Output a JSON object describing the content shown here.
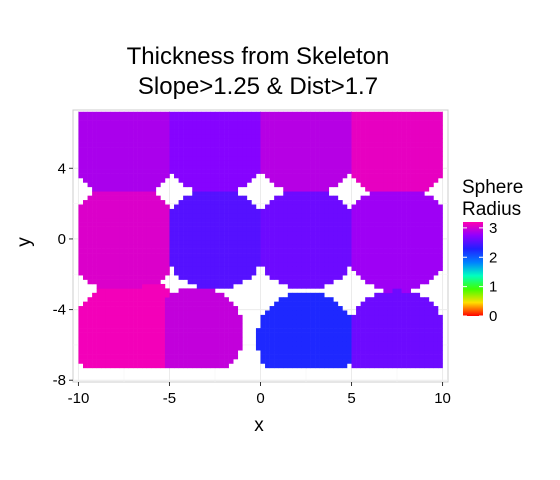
{
  "chart_data": {
    "type": "heatmap",
    "title": [
      "Thickness from Skeleton",
      "Slope>1.25 & Dist>1.7"
    ],
    "xlabel": "x",
    "ylabel": "y",
    "xlim": [
      -10.3,
      10.3
    ],
    "ylim": [
      -8.1,
      7.3
    ],
    "x_ticks": [
      -10,
      -5,
      0,
      5,
      10
    ],
    "x_tick_labels": [
      "-10",
      "-5",
      "0",
      "5",
      "10"
    ],
    "y_ticks": [
      -8,
      -4,
      0,
      4
    ],
    "y_tick_labels": [
      "-8",
      "-4",
      "0",
      "4"
    ],
    "grid": true,
    "legend": {
      "title": [
        "Sphere",
        "Radius"
      ],
      "min": 0,
      "max": 3.2,
      "breaks": [
        0,
        1,
        2,
        3
      ],
      "break_labels": [
        "0",
        "1",
        "2",
        "3"
      ],
      "colors": [
        "#ff0000",
        "#ffdf00",
        "#40ff00",
        "#00ffc0",
        "#0080ff",
        "#2020ff",
        "#9000ff",
        "#ff00b0"
      ],
      "position": "right"
    },
    "cell_size": 0.25,
    "bounds": {
      "x": [
        -10,
        10
      ],
      "y": [
        -7.3,
        7.1
      ]
    },
    "regions": [
      {
        "cx": -7.5,
        "cy": 5.5,
        "r": 3.2,
        "value": 2.85
      },
      {
        "cx": -2.5,
        "cy": 5.5,
        "r": 3.0,
        "value": 2.7
      },
      {
        "cx": 2.5,
        "cy": 5.5,
        "r": 3.0,
        "value": 2.9
      },
      {
        "cx": 7.5,
        "cy": 5.5,
        "r": 3.2,
        "value": 3.1
      },
      {
        "cx": -7.5,
        "cy": 0.0,
        "r": 3.1,
        "value": 3.05
      },
      {
        "cx": -2.5,
        "cy": 0.0,
        "r": 2.9,
        "value": 2.5
      },
      {
        "cx": 2.5,
        "cy": 0.0,
        "r": 2.9,
        "value": 2.6
      },
      {
        "cx": 7.5,
        "cy": 0.0,
        "r": 3.0,
        "value": 2.8
      },
      {
        "cx": -7.0,
        "cy": -5.5,
        "r": 3.3,
        "value": 3.15
      },
      {
        "cx": -3.5,
        "cy": -5.3,
        "r": 2.6,
        "value": 2.95
      },
      {
        "cx": 2.5,
        "cy": -5.7,
        "r": 2.7,
        "value": 2.25
      },
      {
        "cx": 7.5,
        "cy": -5.7,
        "r": 2.8,
        "value": 2.6
      }
    ]
  }
}
